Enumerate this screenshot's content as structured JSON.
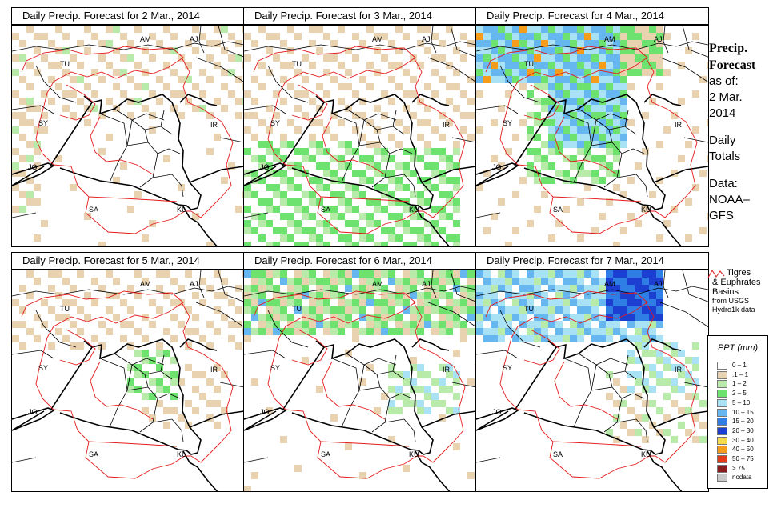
{
  "panels": [
    {
      "title": "Daily Precip. Forecast for  2 Mar., 2014"
    },
    {
      "title": "Daily Precip. Forecast for  3 Mar., 2014"
    },
    {
      "title": "Daily Precip. Forecast for  4 Mar., 2014"
    },
    {
      "title": "Daily Precip. Forecast for  5 Mar., 2014"
    },
    {
      "title": "Daily Precip. Forecast for  6 Mar., 2014"
    },
    {
      "title": "Daily Precip. Forecast for  7 Mar., 2014"
    }
  ],
  "country_labels": [
    "AM",
    "AJ",
    "TU",
    "SY",
    "IR",
    "JO",
    "SA",
    "KU"
  ],
  "sidebar": {
    "title_line1": "Precip.",
    "title_line2": "Forecast",
    "asof_line1": "as of:",
    "asof_line2": "2 Mar.",
    "asof_line3": "2014",
    "totals_line1": "Daily",
    "totals_line2": "Totals",
    "data_line1": "Data:",
    "data_line2": "NOAA–",
    "data_line3": "GFS"
  },
  "basins": {
    "line1": "Tigres",
    "line2": "& Euphrates",
    "line3": "Basins",
    "line4": "from USGS",
    "line5": "Hydro1k data",
    "color": "#e41a1c"
  },
  "legend": {
    "title": "PPT (mm)",
    "items": [
      {
        "label": "0 – 1",
        "color": "#ffffff"
      },
      {
        "label": ".1 – 1",
        "color": "#e8d2b0"
      },
      {
        "label": "1 – 2",
        "color": "#b8ebaa"
      },
      {
        "label": "2 – 5",
        "color": "#6ee26e"
      },
      {
        "label": "5 – 10",
        "color": "#a9e2f5"
      },
      {
        "label": "10 – 15",
        "color": "#66b6ef"
      },
      {
        "label": "15 – 20",
        "color": "#2f7ee6"
      },
      {
        "label": "20 – 30",
        "color": "#1c3fd1"
      },
      {
        "label": "30 – 40",
        "color": "#f5db4a"
      },
      {
        "label": "40 – 50",
        "color": "#f59c1a"
      },
      {
        "label": "50 – 75",
        "color": "#e23a17"
      },
      {
        "label": "> 75",
        "color": "#8b1a1a"
      },
      {
        "label": "nodata",
        "color": "#c9c9c9"
      }
    ]
  }
}
